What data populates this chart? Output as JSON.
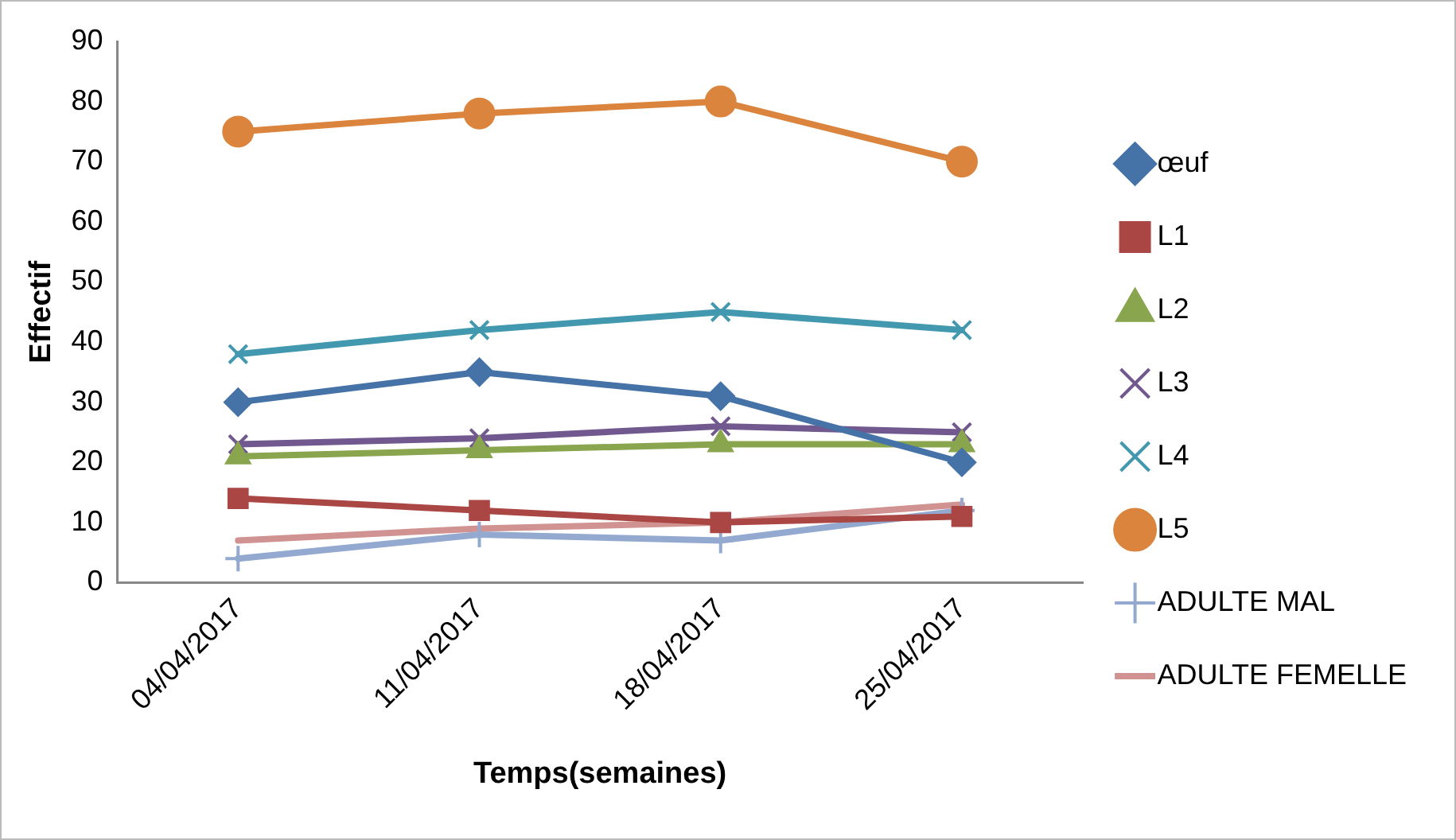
{
  "chart_data": {
    "type": "line",
    "xlabel": "Temps(semaines)",
    "ylabel": "Effectif",
    "categories": [
      "04/04/2017",
      "11/04/2017",
      "18/04/2017",
      "25/04/2017"
    ],
    "ylim": [
      0,
      90
    ],
    "yticks": [
      0,
      10,
      20,
      30,
      40,
      50,
      60,
      70,
      80,
      90
    ],
    "grid": false,
    "legend": "right",
    "series": [
      {
        "name": "œuf",
        "color": "#4572a7",
        "marker": "diamond",
        "values": [
          30,
          35,
          31,
          20
        ]
      },
      {
        "name": "L1",
        "color": "#aa4643",
        "marker": "square",
        "values": [
          14,
          12,
          10,
          11
        ]
      },
      {
        "name": "L2",
        "color": "#89a54e",
        "marker": "triangle",
        "values": [
          21,
          22,
          23,
          23
        ]
      },
      {
        "name": "L3",
        "color": "#71588f",
        "marker": "cross",
        "values": [
          23,
          24,
          26,
          25
        ]
      },
      {
        "name": "L4",
        "color": "#4198af",
        "marker": "cross",
        "values": [
          38,
          42,
          45,
          42
        ]
      },
      {
        "name": "L5",
        "color": "#db843d",
        "marker": "circle",
        "values": [
          75,
          78,
          80,
          70
        ]
      },
      {
        "name": "ADULTE MAL",
        "color": "#93a9cf",
        "marker": "plus",
        "values": [
          4,
          8,
          7,
          12
        ]
      },
      {
        "name": "ADULTE FEMELLE",
        "color": "#d19392",
        "marker": "none",
        "values": [
          7,
          9,
          10,
          13
        ]
      }
    ]
  }
}
